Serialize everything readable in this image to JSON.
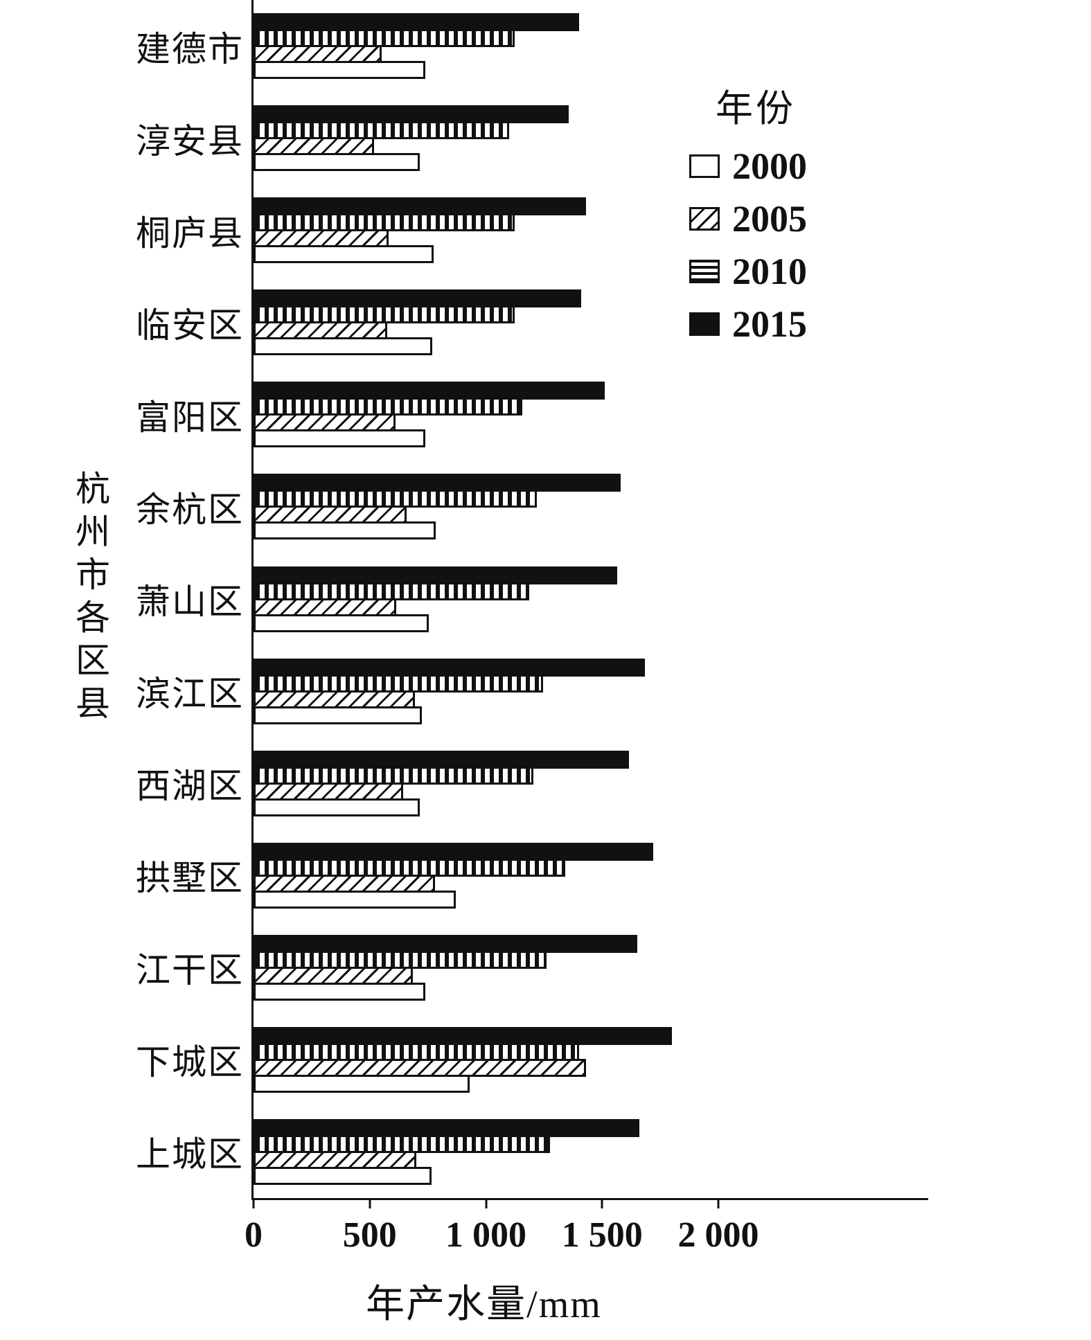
{
  "colors": {
    "ink": "#111111",
    "background": "#ffffff"
  },
  "chart_data": {
    "type": "bar",
    "orientation": "horizontal",
    "xlabel": "年产水量/mm",
    "ylabel": "杭州市各区县",
    "xlim": [
      0,
      2000
    ],
    "xticks": [
      0,
      500,
      1000,
      1500,
      2000
    ],
    "xtick_labels": [
      "0",
      "500",
      "1 000",
      "1 500",
      "2 000"
    ],
    "grid": false,
    "legend": {
      "title": "年份",
      "position": "upper-right-inside"
    },
    "categories_top_to_bottom": [
      "建德市",
      "淳安县",
      "桐庐县",
      "临安区",
      "富阳区",
      "余杭区",
      "萧山区",
      "滨江区",
      "西湖区",
      "拱墅区",
      "江干区",
      "下城区",
      "上城区"
    ],
    "bar_order_top_to_bottom_within_group": [
      "2015",
      "2010",
      "2005",
      "2000"
    ],
    "series": [
      {
        "name": "2000",
        "pattern": "plain",
        "values": [
          740,
          715,
          775,
          770,
          740,
          785,
          755,
          725,
          715,
          870,
          740,
          930,
          765
        ]
      },
      {
        "name": "2005",
        "pattern": "diagonal-hatch",
        "values": [
          550,
          520,
          580,
          575,
          610,
          660,
          615,
          695,
          645,
          780,
          685,
          1430,
          700
        ]
      },
      {
        "name": "2010",
        "pattern": "vertical-stripes",
        "values": [
          1125,
          1100,
          1125,
          1125,
          1155,
          1220,
          1185,
          1245,
          1205,
          1340,
          1260,
          1400,
          1275
        ]
      },
      {
        "name": "2015",
        "pattern": "solid",
        "values": [
          1400,
          1355,
          1430,
          1410,
          1510,
          1580,
          1565,
          1685,
          1615,
          1720,
          1650,
          1800,
          1660
        ]
      }
    ]
  }
}
